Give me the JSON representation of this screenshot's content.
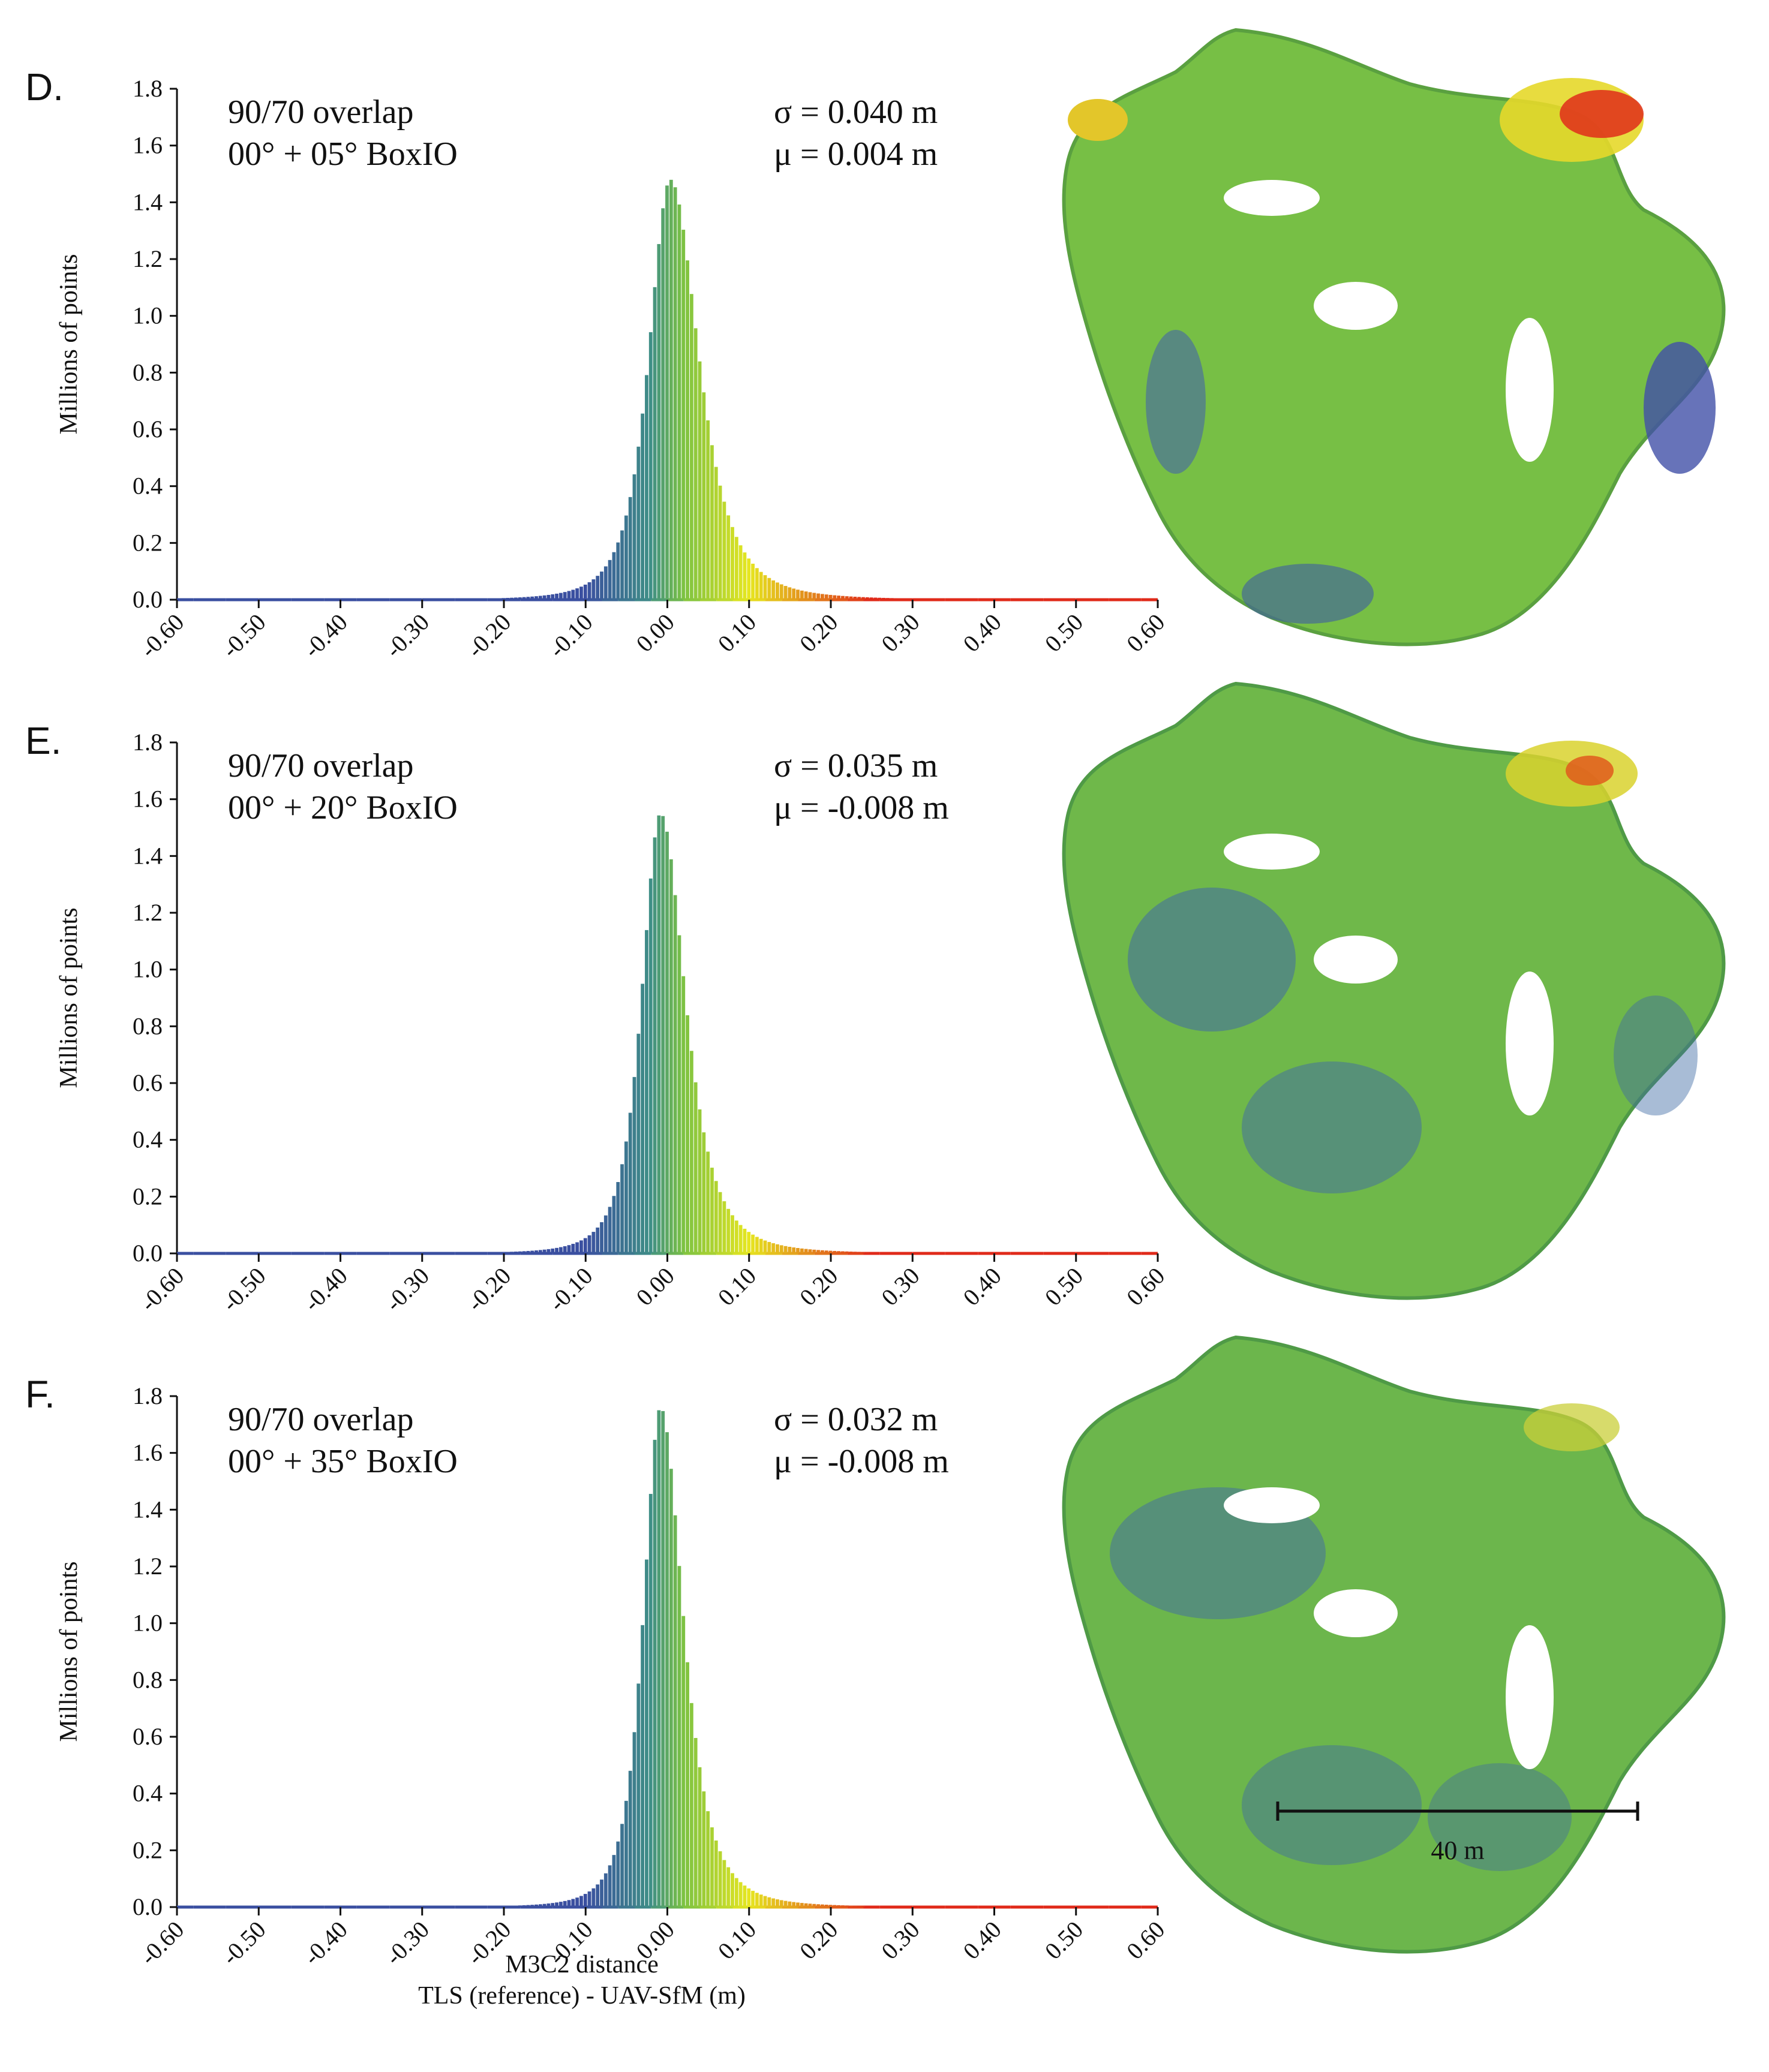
{
  "chart_data": [
    {
      "type": "bar",
      "panel": "D.",
      "label_line1": "90/70 overlap",
      "label_line2": "00° + 05° BoxIO",
      "sigma_text": "σ = 0.040 m",
      "mu_text": "μ = 0.004 m",
      "sigma": 0.04,
      "mu": 0.004,
      "peak": 1.48,
      "xlim": [
        -0.6,
        0.6
      ],
      "ylim": [
        0,
        1.8
      ],
      "ylabel": "Millions of points",
      "yticks": [
        "0.0",
        "0.2",
        "0.4",
        "0.6",
        "0.8",
        "1.0",
        "1.2",
        "1.4",
        "1.6",
        "1.8"
      ],
      "xticks": [
        "-0.60",
        "-0.50",
        "-0.40",
        "-0.30",
        "-0.20",
        "-0.10",
        "0.00",
        "0.10",
        "0.20",
        "0.30",
        "0.40",
        "0.50",
        "0.60"
      ]
    },
    {
      "type": "bar",
      "panel": "E.",
      "label_line1": "90/70 overlap",
      "label_line2": "00° + 20° BoxIO",
      "sigma_text": "σ = 0.035 m",
      "mu_text": "μ = -0.008 m",
      "sigma": 0.035,
      "mu": -0.008,
      "peak": 1.55,
      "xlim": [
        -0.6,
        0.6
      ],
      "ylim": [
        0,
        1.8
      ],
      "ylabel": "Millions of points",
      "yticks": [
        "0.0",
        "0.2",
        "0.4",
        "0.6",
        "0.8",
        "1.0",
        "1.2",
        "1.4",
        "1.6",
        "1.8"
      ],
      "xticks": [
        "-0.60",
        "-0.50",
        "-0.40",
        "-0.30",
        "-0.20",
        "-0.10",
        "0.00",
        "0.10",
        "0.20",
        "0.30",
        "0.40",
        "0.50",
        "0.60"
      ]
    },
    {
      "type": "bar",
      "panel": "F.",
      "label_line1": "90/70 overlap",
      "label_line2": "00° + 35° BoxIO",
      "sigma_text": "σ = 0.032 m",
      "mu_text": "μ = -0.008 m",
      "sigma": 0.032,
      "mu": -0.008,
      "peak": 1.76,
      "xlim": [
        -0.6,
        0.6
      ],
      "ylim": [
        0,
        1.8
      ],
      "ylabel": "Millions of points",
      "yticks": [
        "0.0",
        "0.2",
        "0.4",
        "0.6",
        "0.8",
        "1.0",
        "1.2",
        "1.4",
        "1.6",
        "1.8"
      ],
      "xticks": [
        "-0.60",
        "-0.50",
        "-0.40",
        "-0.30",
        "-0.20",
        "-0.10",
        "0.00",
        "0.10",
        "0.20",
        "0.30",
        "0.40",
        "0.50",
        "0.60"
      ]
    }
  ],
  "xlabel_line1": "M3C2 distance",
  "xlabel_line2": "TLS (reference) - UAV-SfM (m)",
  "scale_label": "40 m",
  "colors": {
    "blue": "#3a4fa0",
    "teal": "#3f8f86",
    "green": "#7cc242",
    "yellow": "#e6e620",
    "red": "#e02a1a"
  }
}
